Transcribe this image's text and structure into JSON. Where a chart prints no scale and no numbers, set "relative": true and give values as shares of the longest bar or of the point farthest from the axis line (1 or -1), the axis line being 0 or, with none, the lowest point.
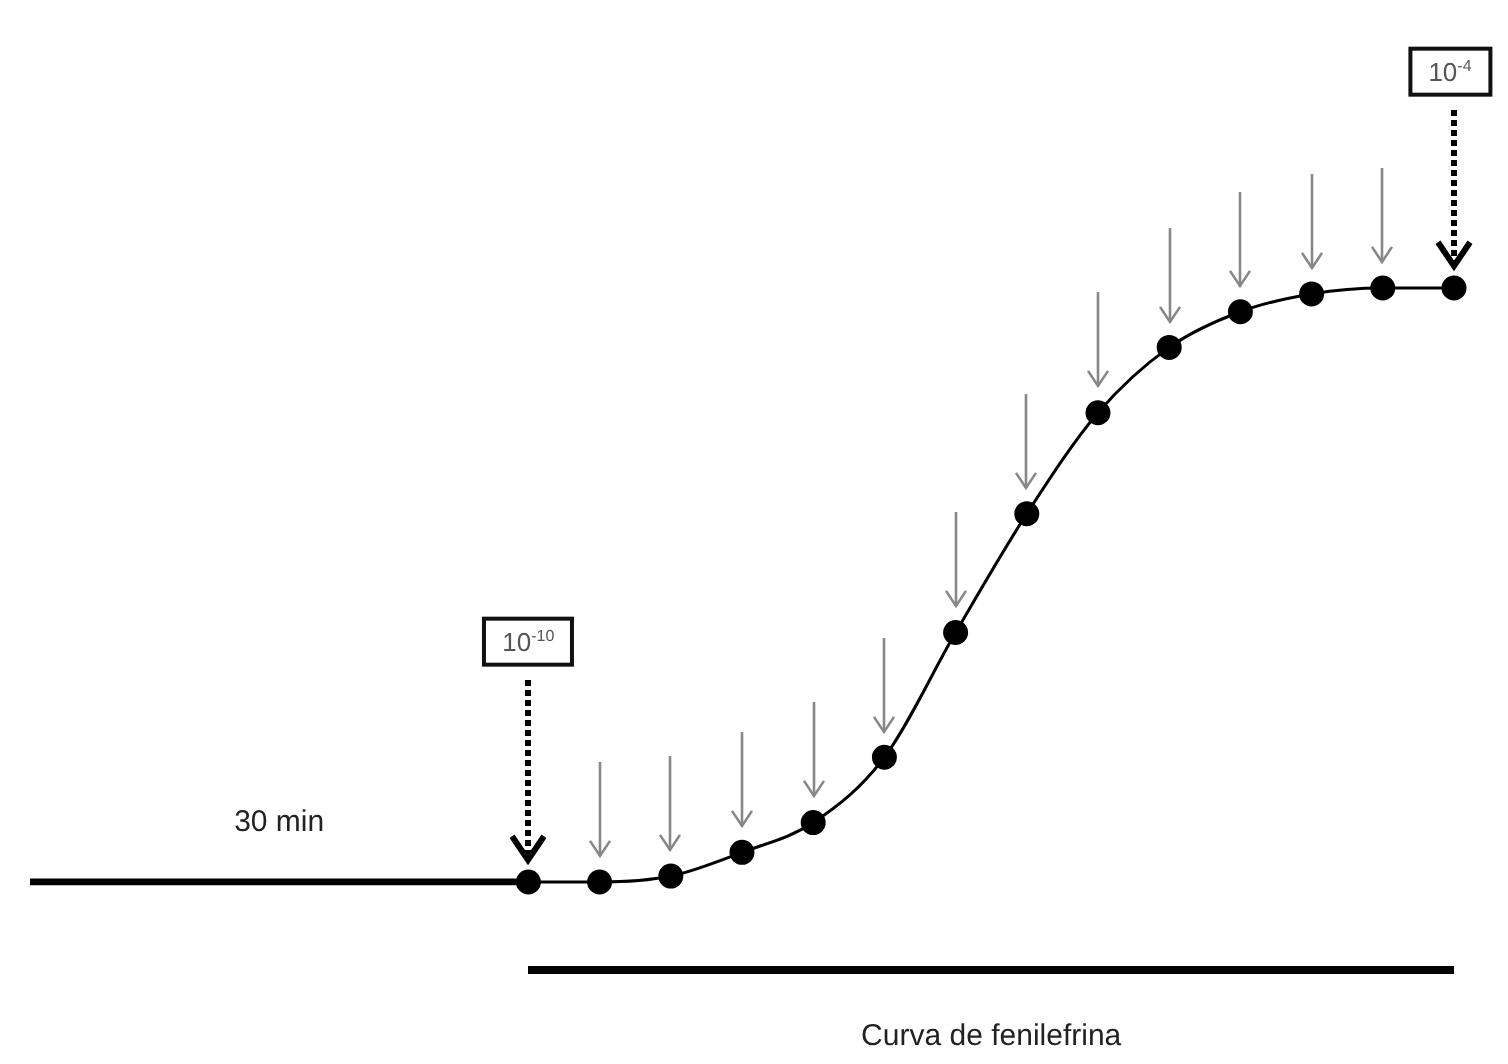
{
  "chart_data": {
    "type": "line",
    "relative": true,
    "legend": false,
    "categories": [
      null,
      null,
      null,
      null,
      null,
      null,
      null,
      null,
      null,
      null,
      null,
      null,
      null,
      null,
      null,
      null,
      null,
      null,
      null,
      null,
      null
    ],
    "series": [
      {
        "color": "#000000",
        "values": [
          0,
          null,
          null,
          null,
          null,
          null,
          null,
          0,
          null,
          null,
          null,
          null,
          null,
          null,
          null,
          null,
          null,
          null,
          null,
          null,
          null
        ]
      },
      {
        "color": "#000000",
        "marker": "circle",
        "values": [
          null,
          null,
          null,
          null,
          null,
          null,
          null,
          0,
          0,
          0.01,
          0.05,
          0.1,
          0.21,
          0.42,
          0.62,
          0.79,
          0.9,
          0.96,
          0.99,
          1,
          1
        ]
      }
    ],
    "annotations": [
      "30 min",
      "10$^{-10}$",
      "10$^{-4}$",
      "Curva de fenilefrina"
    ]
  }
}
